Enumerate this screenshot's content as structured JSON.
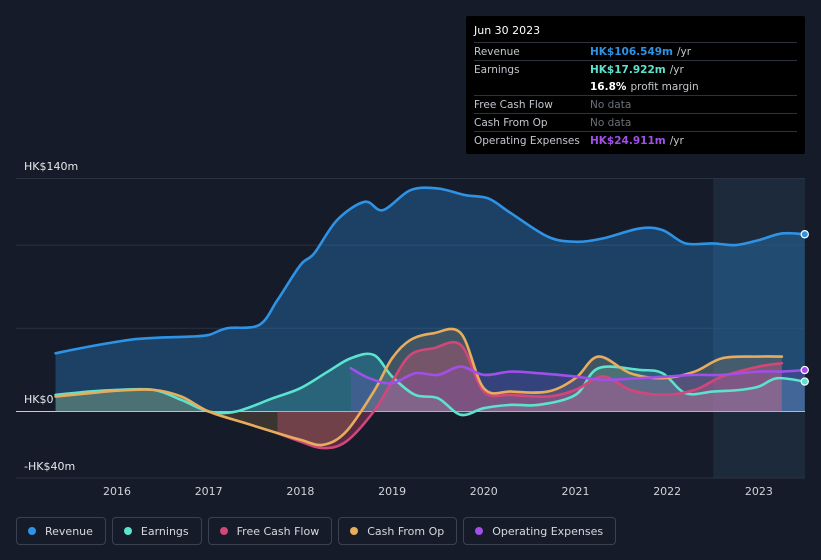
{
  "tooltip": {
    "date": "Jun 30 2023",
    "rows": [
      {
        "label": "Revenue",
        "value": "HK$106.549m",
        "unit": "/yr",
        "color": "#2e93e5"
      },
      {
        "label": "Earnings",
        "value": "HK$17.922m",
        "unit": "/yr",
        "color": "#5ce3cd"
      },
      {
        "label": "",
        "value": "16.8%",
        "unit": "profit margin",
        "color": "#ffffff"
      },
      {
        "label": "Free Cash Flow",
        "value": "No data",
        "unit": "",
        "color": "#6b7079"
      },
      {
        "label": "Cash From Op",
        "value": "No data",
        "unit": "",
        "color": "#6b7079"
      },
      {
        "label": "Operating Expenses",
        "value": "HK$24.911m",
        "unit": "/yr",
        "color": "#a14fe8"
      }
    ]
  },
  "axis": {
    "y_top_label": "HK$140m",
    "y_zero_label": "HK$0",
    "y_bottom_label": "-HK$40m"
  },
  "legend": [
    {
      "label": "Revenue",
      "color": "#2e93e5"
    },
    {
      "label": "Earnings",
      "color": "#5ce3cd"
    },
    {
      "label": "Free Cash Flow",
      "color": "#d2477a"
    },
    {
      "label": "Cash From Op",
      "color": "#e8ad5c"
    },
    {
      "label": "Operating Expenses",
      "color": "#a14fe8"
    }
  ],
  "chart_data": {
    "type": "area",
    "x_ticks": [
      "2016",
      "2017",
      "2018",
      "2019",
      "2020",
      "2021",
      "2022",
      "2023"
    ],
    "ylim": [
      -40,
      140
    ],
    "y_ticks": [
      -40,
      0,
      140
    ],
    "highlight_from": 2022.5,
    "series": [
      {
        "name": "Revenue",
        "color": "#2e93e5",
        "x": [
          2015.33,
          2015.6,
          2015.9,
          2016.2,
          2016.5,
          2016.8,
          2017.0,
          2017.2,
          2017.55,
          2017.75,
          2018.0,
          2018.15,
          2018.4,
          2018.7,
          2018.9,
          2019.2,
          2019.5,
          2019.8,
          2020.05,
          2020.3,
          2020.7,
          2021.0,
          2021.3,
          2021.7,
          2021.95,
          2022.2,
          2022.5,
          2022.75,
          2023.0,
          2023.25,
          2023.5
        ],
        "y": [
          35,
          38,
          41,
          43.5,
          44.5,
          45,
          46,
          50,
          52,
          67,
          88,
          95,
          115,
          126,
          121,
          133,
          134,
          130,
          128,
          119,
          105,
          102,
          104,
          110,
          109,
          101,
          101,
          100,
          103,
          107,
          106.5
        ]
      },
      {
        "name": "Earnings",
        "color": "#5ce3cd",
        "x": [
          2015.33,
          2015.7,
          2016.0,
          2016.4,
          2016.7,
          2017.0,
          2017.3,
          2017.7,
          2018.0,
          2018.3,
          2018.55,
          2018.8,
          2019.0,
          2019.25,
          2019.5,
          2019.75,
          2020.0,
          2020.3,
          2020.6,
          2021.0,
          2021.25,
          2021.7,
          2021.95,
          2022.2,
          2022.5,
          2022.8,
          2023.0,
          2023.2,
          2023.5
        ],
        "y": [
          10,
          12,
          13,
          13,
          7,
          0,
          0,
          8,
          14,
          24,
          32,
          34,
          21,
          10,
          8,
          -2,
          2,
          4,
          4,
          10,
          26,
          25,
          23,
          11,
          12,
          13,
          15,
          20,
          18
        ]
      },
      {
        "name": "Free Cash Flow",
        "color": "#d2477a",
        "x": [
          2017.75,
          2018.0,
          2018.25,
          2018.5,
          2018.8,
          2019.0,
          2019.2,
          2019.45,
          2019.75,
          2020.0,
          2020.3,
          2020.7,
          2021.0,
          2021.3,
          2021.6,
          2021.95,
          2022.3,
          2022.6,
          2023.0,
          2023.25
        ],
        "y": [
          -13,
          -18,
          -22,
          -18,
          0,
          18,
          34,
          38,
          40,
          12,
          10,
          9,
          13,
          21,
          13,
          10,
          13,
          21,
          27,
          29
        ]
      },
      {
        "name": "Cash From Op",
        "color": "#e8ad5c",
        "x": [
          2015.33,
          2015.7,
          2016.0,
          2016.4,
          2016.7,
          2017.0,
          2017.4,
          2017.75,
          2018.0,
          2018.25,
          2018.5,
          2018.8,
          2019.0,
          2019.2,
          2019.45,
          2019.75,
          2020.0,
          2020.3,
          2020.7,
          2021.0,
          2021.25,
          2021.6,
          2021.95,
          2022.3,
          2022.6,
          2023.0,
          2023.25
        ],
        "y": [
          9,
          11,
          12.5,
          13,
          9,
          0,
          -7,
          -13,
          -17,
          -20,
          -12,
          12,
          32,
          43,
          47,
          47,
          14,
          12,
          12,
          20,
          33,
          23,
          20,
          24,
          32,
          33,
          33
        ]
      },
      {
        "name": "Operating Expenses",
        "color": "#a14fe8",
        "x": [
          2018.55,
          2018.75,
          2019.0,
          2019.25,
          2019.5,
          2019.75,
          2020.0,
          2020.3,
          2020.6,
          2021.0,
          2021.3,
          2021.7,
          2022.0,
          2022.3,
          2022.6,
          2023.0,
          2023.25,
          2023.5
        ],
        "y": [
          26,
          20,
          17,
          23,
          22,
          27,
          22,
          24,
          23,
          21,
          19,
          20,
          21,
          22,
          22,
          24,
          24,
          24.9
        ]
      }
    ]
  }
}
